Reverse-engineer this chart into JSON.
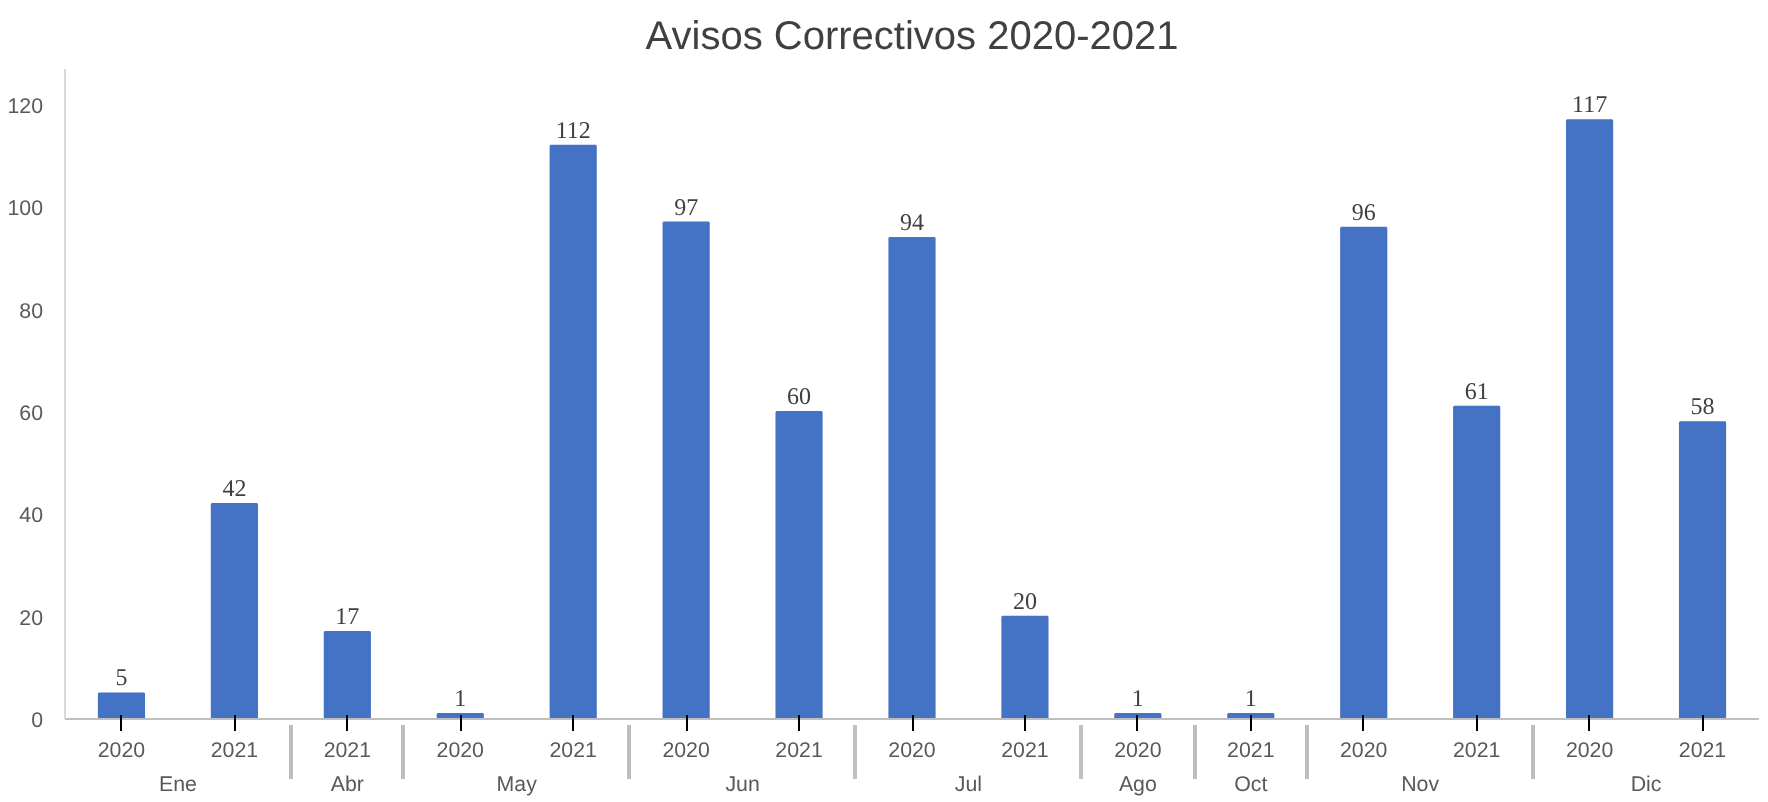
{
  "chart_data": {
    "type": "bar",
    "title": "Avisos Correctivos 2020-2021",
    "categories": [
      [
        "Ene",
        "2020"
      ],
      [
        null,
        "2021"
      ],
      [
        "Abr",
        "2021"
      ],
      [
        "May",
        "2020"
      ],
      [
        null,
        "2021"
      ],
      [
        "Jun",
        "2020"
      ],
      [
        null,
        "2021"
      ],
      [
        "Jul",
        "2020"
      ],
      [
        null,
        "2021"
      ],
      [
        "Ago",
        "2020"
      ],
      [
        "Oct",
        "2021"
      ],
      [
        "Nov",
        "2020"
      ],
      [
        null,
        "2021"
      ],
      [
        "Dic",
        "2020"
      ],
      [
        null,
        "2021"
      ]
    ],
    "values": [
      5,
      42,
      17,
      1,
      112,
      97,
      60,
      94,
      20,
      1,
      1,
      96,
      61,
      117,
      58
    ],
    "color": "#4472c4",
    "ylim": [
      0,
      127
    ],
    "yticks": [
      0,
      20,
      40,
      60,
      80,
      100,
      120
    ],
    "grid": false,
    "data_labels": true
  }
}
